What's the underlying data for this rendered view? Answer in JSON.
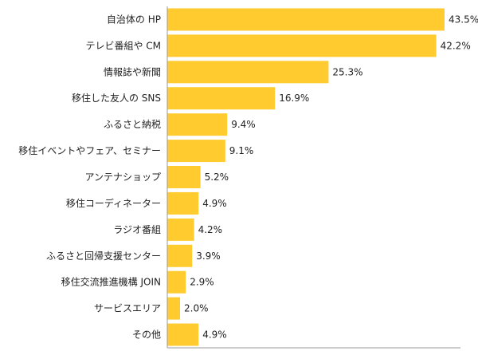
{
  "chart_data": {
    "type": "bar",
    "orientation": "horizontal",
    "categories": [
      "自治体の HP",
      "テレビ番組や CM",
      "情報誌や新聞",
      "移住した友人の SNS",
      "ふるさと納税",
      "移住イベントやフェア、セミナー",
      "アンテナショップ",
      "移住コーディネーター",
      "ラジオ番組",
      "ふるさと回帰支援センター",
      "移住交流推進機構 JOIN",
      "サービスエリア",
      "その他"
    ],
    "values": [
      43.5,
      42.2,
      25.3,
      16.9,
      9.4,
      9.1,
      5.2,
      4.9,
      4.2,
      3.9,
      2.9,
      2.0,
      4.9
    ],
    "value_labels": [
      "43.5%",
      "42.2%",
      "25.3%",
      "16.9%",
      "9.4%",
      "9.1%",
      "5.2%",
      "4.9%",
      "4.2%",
      "3.9%",
      "2.9%",
      "2.0%",
      "4.9%"
    ],
    "xlim": [
      0,
      46
    ],
    "grid": false,
    "title": "",
    "xlabel": "",
    "ylabel": "",
    "colors": {
      "bar": "#FFCB2F",
      "axis": "#999999",
      "text": "#222222"
    }
  }
}
